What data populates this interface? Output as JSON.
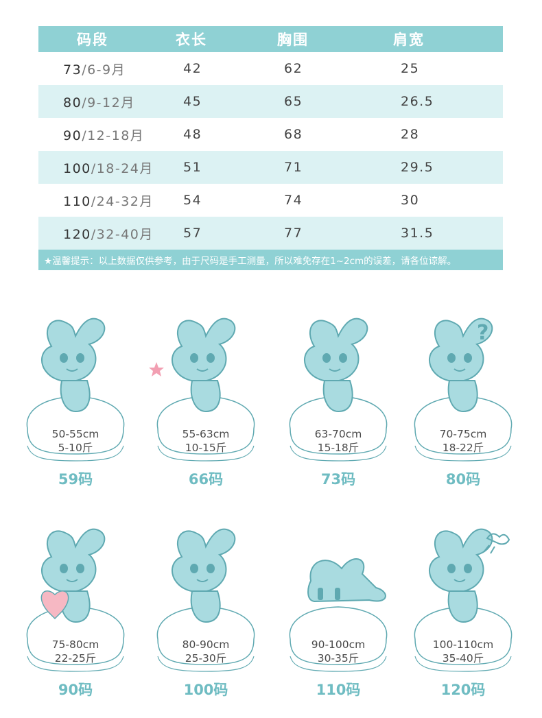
{
  "table": {
    "headers": [
      "码段",
      "衣长",
      "胸围",
      "肩宽"
    ],
    "rows": [
      {
        "size": "73",
        "sep": "/",
        "age": "6-9月",
        "length": "42",
        "chest": "62",
        "shoulder": "25"
      },
      {
        "size": "80",
        "sep": "/",
        "age": "9-12月",
        "length": "45",
        "chest": "65",
        "shoulder": "26.5"
      },
      {
        "size": "90",
        "sep": "/",
        "age": "12-18月",
        "length": "48",
        "chest": "68",
        "shoulder": "28"
      },
      {
        "size": "100",
        "sep": "/",
        "age": "18-24月",
        "length": "51",
        "chest": "71",
        "shoulder": "29.5"
      },
      {
        "size": "110",
        "sep": "/",
        "age": "24-32月",
        "length": "54",
        "chest": "74",
        "shoulder": "30"
      },
      {
        "size": "120",
        "sep": "/",
        "age": "32-40月",
        "length": "57",
        "chest": "77",
        "shoulder": "31.5"
      }
    ],
    "tip": "★温馨提示：以上数据仅供参考，由于尺码是手工测量，所以难免存在1~2cm的误差，请各位谅解。"
  },
  "sizes": [
    {
      "height": "50-55cm",
      "weight": "5-10斤",
      "label": "59码",
      "pose": "smile"
    },
    {
      "height": "55-63cm",
      "weight": "10-15斤",
      "label": "66码",
      "pose": "star"
    },
    {
      "height": "63-70cm",
      "weight": "15-18斤",
      "label": "73码",
      "pose": "sit"
    },
    {
      "height": "70-75cm",
      "weight": "18-22斤",
      "label": "80码",
      "pose": "question"
    },
    {
      "height": "75-80cm",
      "weight": "22-25斤",
      "label": "90码",
      "pose": "heart"
    },
    {
      "height": "80-90cm",
      "weight": "25-30斤",
      "label": "100码",
      "pose": "lean"
    },
    {
      "height": "90-100cm",
      "weight": "30-35斤",
      "label": "110码",
      "pose": "cry"
    },
    {
      "height": "100-110cm",
      "weight": "35-40斤",
      "label": "120码",
      "pose": "angry"
    }
  ],
  "colors": {
    "accent": "#8fd1d4",
    "row_shade": "#dcf2f3",
    "label": "#6fbcc2",
    "bunny": "#a9dbe0",
    "bunny_outline": "#5fa9b1",
    "heart": "#f6b8c3",
    "star": "#f29fb2"
  },
  "decorations": {
    "question_mark": "?"
  }
}
